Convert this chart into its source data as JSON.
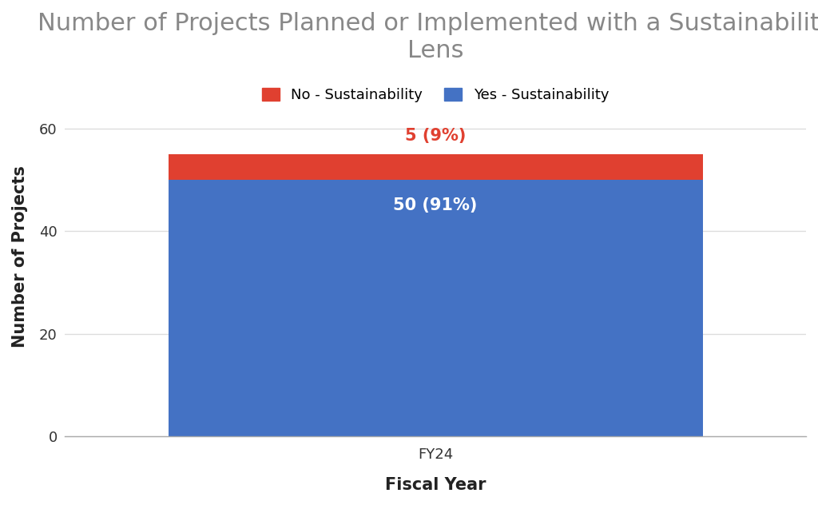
{
  "title": "Number of Projects Planned or Implemented with a Sustainability\nLens",
  "xlabel": "Fiscal Year",
  "ylabel": "Number of Projects",
  "categories": [
    "FY24"
  ],
  "yes_values": [
    50
  ],
  "no_values": [
    5
  ],
  "yes_color": "#4472C4",
  "no_color": "#E04030",
  "yes_label": "Yes - Sustainability",
  "no_label": "No - Sustainability",
  "yes_annotation": "50 (91%)",
  "no_annotation": "5 (9%)",
  "yes_annotation_color": "#FFFFFF",
  "no_annotation_color": "#E04030",
  "ylim": [
    0,
    70
  ],
  "yticks": [
    0,
    20,
    40,
    60
  ],
  "background_color": "#FFFFFF",
  "title_fontsize": 22,
  "axis_label_fontsize": 15,
  "tick_fontsize": 13,
  "legend_fontsize": 13,
  "annotation_fontsize": 15,
  "title_color": "#888888",
  "axis_label_color": "#222222",
  "tick_color": "#333333",
  "grid_color": "#DDDDDD",
  "bar_width": 0.75,
  "xlim": [
    -0.52,
    0.52
  ]
}
